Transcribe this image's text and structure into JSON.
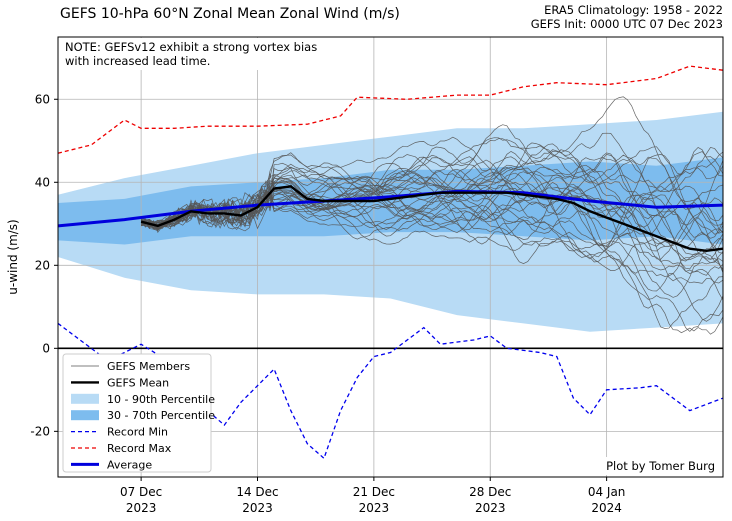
{
  "header": {
    "title": "GEFS 10-hPa 60°N Zonal Mean Zonal Wind (m/s)",
    "climatology": "ERA5 Climatology: 1958 - 2022",
    "init": "GEFS Init: 0000 UTC 07 Dec 2023"
  },
  "chart_data": {
    "type": "line",
    "title": "GEFS 10-hPa 60°N Zonal Mean Zonal Wind (m/s)",
    "ylabel": "u-wind (m/s)",
    "xlabel": "",
    "ylim": [
      -31,
      75
    ],
    "xlim": [
      "2023-12-02",
      "2024-01-11"
    ],
    "grid": true,
    "legend_position": "lower-left",
    "note": "NOTE: GEFSv12 exhibit a strong vortex bias\nwith increased lead time.",
    "credit": "Plot by Tomer Burg",
    "y_ticks": [
      -20,
      0,
      20,
      40,
      60
    ],
    "x_ticks": [
      {
        "date": "2023-12-07",
        "label1": "07 Dec",
        "label2": "2023"
      },
      {
        "date": "2023-12-14",
        "label1": "14 Dec",
        "label2": "2023"
      },
      {
        "date": "2023-12-21",
        "label1": "21 Dec",
        "label2": "2023"
      },
      {
        "date": "2023-12-28",
        "label1": "28 Dec",
        "label2": "2023"
      },
      {
        "date": "2024-01-04",
        "label1": "04 Jan",
        "label2": "2024"
      }
    ],
    "legend": [
      {
        "key": "members",
        "label": "GEFS Members"
      },
      {
        "key": "mean",
        "label": "GEFS Mean"
      },
      {
        "key": "p1090",
        "label": "10 - 90th Percentile"
      },
      {
        "key": "p3070",
        "label": "30 - 70th Percentile"
      },
      {
        "key": "recmin",
        "label": "Record Min"
      },
      {
        "key": "recmax",
        "label": "Record Max"
      },
      {
        "key": "avg",
        "label": "Average"
      }
    ],
    "colors": {
      "members": "#555555",
      "mean": "#000000",
      "p1090": "#b8dbf5",
      "p3070": "#7dbcee",
      "recmin": "#0000ee",
      "recmax": "#ee0000",
      "avg": "#0000dd"
    },
    "climatology_x": [
      "2023-12-02",
      "2023-12-06",
      "2023-12-10",
      "2023-12-14",
      "2023-12-18",
      "2023-12-22",
      "2023-12-26",
      "2023-12-30",
      "2024-01-03",
      "2024-01-07",
      "2024-01-11"
    ],
    "average": [
      29.5,
      31,
      33,
      34.5,
      35.5,
      36.5,
      37.8,
      37.5,
      35.5,
      34,
      34.5
    ],
    "p10": [
      22,
      17,
      14,
      13,
      13,
      12,
      8,
      6,
      4,
      5,
      6
    ],
    "p30": [
      26,
      25,
      27,
      27,
      27,
      28,
      28,
      27,
      26,
      27,
      25
    ],
    "p70": [
      35,
      36,
      39,
      40,
      41,
      43,
      43,
      44,
      45,
      44,
      46
    ],
    "p90": [
      37,
      41,
      44,
      47,
      49,
      51,
      53,
      53,
      54,
      55,
      57
    ],
    "record_max": {
      "x": [
        "2023-12-02",
        "2023-12-04",
        "2023-12-06",
        "2023-12-07",
        "2023-12-09",
        "2023-12-11",
        "2023-12-14",
        "2023-12-17",
        "2023-12-19",
        "2023-12-20",
        "2023-12-23",
        "2023-12-26",
        "2023-12-28",
        "2023-12-30",
        "2024-01-01",
        "2024-01-04",
        "2024-01-07",
        "2024-01-09",
        "2024-01-11"
      ],
      "y": [
        47,
        49,
        55,
        53,
        53,
        53.5,
        53.5,
        54,
        56,
        60.5,
        60,
        61,
        61,
        63,
        64,
        63.5,
        65,
        68,
        67
      ]
    },
    "record_min": {
      "x": [
        "2023-12-02",
        "2023-12-03",
        "2023-12-05",
        "2023-12-07",
        "2023-12-09",
        "2023-12-11",
        "2023-12-12",
        "2023-12-13",
        "2023-12-15",
        "2023-12-16",
        "2023-12-17",
        "2023-12-18",
        "2023-12-19",
        "2023-12-20",
        "2023-12-21",
        "2023-12-22",
        "2023-12-24",
        "2023-12-25",
        "2023-12-27",
        "2023-12-28",
        "2023-12-29",
        "2023-12-31",
        "2024-01-01",
        "2024-01-02",
        "2024-01-03",
        "2024-01-04",
        "2024-01-06",
        "2024-01-07",
        "2024-01-09",
        "2024-01-11"
      ],
      "y": [
        6,
        3,
        -3,
        1,
        -4,
        -15,
        -18.5,
        -13,
        -5,
        -15,
        -23,
        -26.5,
        -15,
        -7,
        -2,
        -1,
        5,
        1,
        2,
        3,
        0,
        -1,
        -2,
        -12,
        -16,
        -10,
        -9.5,
        -9,
        -15,
        -12
      ]
    },
    "gefs_mean": {
      "x": [
        "2023-12-07",
        "2023-12-08",
        "2023-12-09",
        "2023-12-10",
        "2023-12-11",
        "2023-12-12",
        "2023-12-13",
        "2023-12-14",
        "2023-12-15",
        "2023-12-16",
        "2023-12-17",
        "2023-12-18",
        "2023-12-19",
        "2023-12-20",
        "2023-12-21",
        "2023-12-22",
        "2023-12-23",
        "2023-12-24",
        "2023-12-25",
        "2023-12-26",
        "2023-12-27",
        "2023-12-28",
        "2023-12-29",
        "2023-12-30",
        "2023-12-31",
        "2024-01-01",
        "2024-01-02",
        "2024-01-03",
        "2024-01-04",
        "2024-01-05",
        "2024-01-06",
        "2024-01-07",
        "2024-01-08",
        "2024-01-09",
        "2024-01-10",
        "2024-01-11"
      ],
      "y": [
        30.5,
        29.5,
        31,
        33,
        32.5,
        32.5,
        32,
        34,
        38.5,
        39,
        36,
        35.5,
        35.5,
        35.5,
        35.5,
        36,
        36.5,
        37,
        37.5,
        37.5,
        37.5,
        37.5,
        37.5,
        37,
        36.5,
        36,
        35,
        33,
        31.5,
        30,
        28.5,
        27,
        25.5,
        24,
        23.5,
        24
      ]
    }
  }
}
